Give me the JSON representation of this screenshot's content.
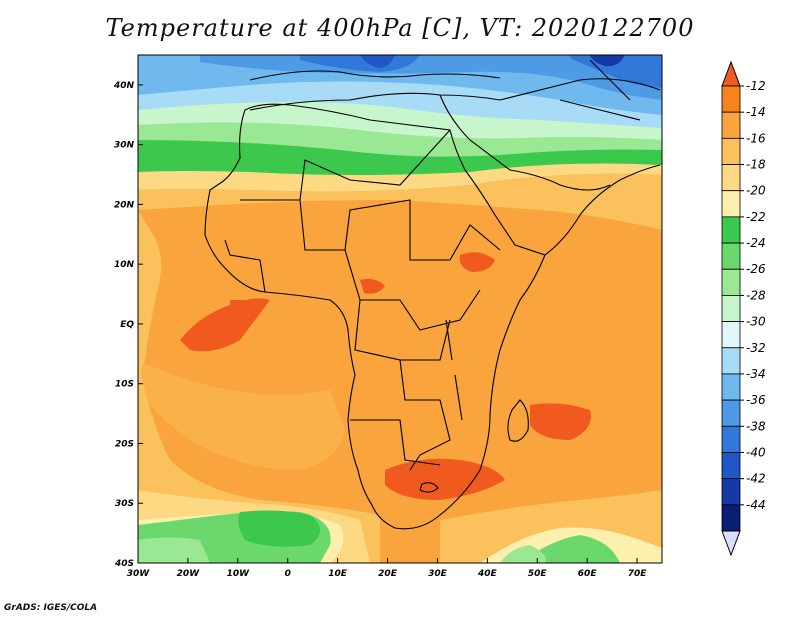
{
  "title": "Temperature at 400hPa [C], VT: 2020122700",
  "footer": "GrADS: IGES/COLA",
  "map": {
    "lon_range": [
      -30,
      75
    ],
    "lat_range": [
      -40,
      45
    ],
    "lat_ticks": [
      "40N",
      "30N",
      "20N",
      "10N",
      "EQ",
      "10S",
      "20S",
      "30S",
      "40S"
    ],
    "lon_ticks": [
      "30W",
      "20W",
      "10W",
      "0",
      "10E",
      "20E",
      "30E",
      "40E",
      "50E",
      "60E",
      "70E"
    ]
  },
  "colorbar": {
    "labels": [
      "-12",
      "-14",
      "-16",
      "-18",
      "-20",
      "-22",
      "-24",
      "-26",
      "-28",
      "-30",
      "-32",
      "-34",
      "-36",
      "-38",
      "-40",
      "-42",
      "-44"
    ],
    "colors": [
      "#f05a1e",
      "#f6831d",
      "#f9a43c",
      "#fbc15c",
      "#fdd984",
      "#fdf0ae",
      "#3cc84c",
      "#6ad86c",
      "#9be894",
      "#c8f6cc",
      "#e2f6fb",
      "#a8dcf6",
      "#6fb9ee",
      "#4e9ae4",
      "#3278d8",
      "#1f58c6",
      "#1438a6",
      "#0a1e74",
      "#dcdcfc"
    ]
  }
}
